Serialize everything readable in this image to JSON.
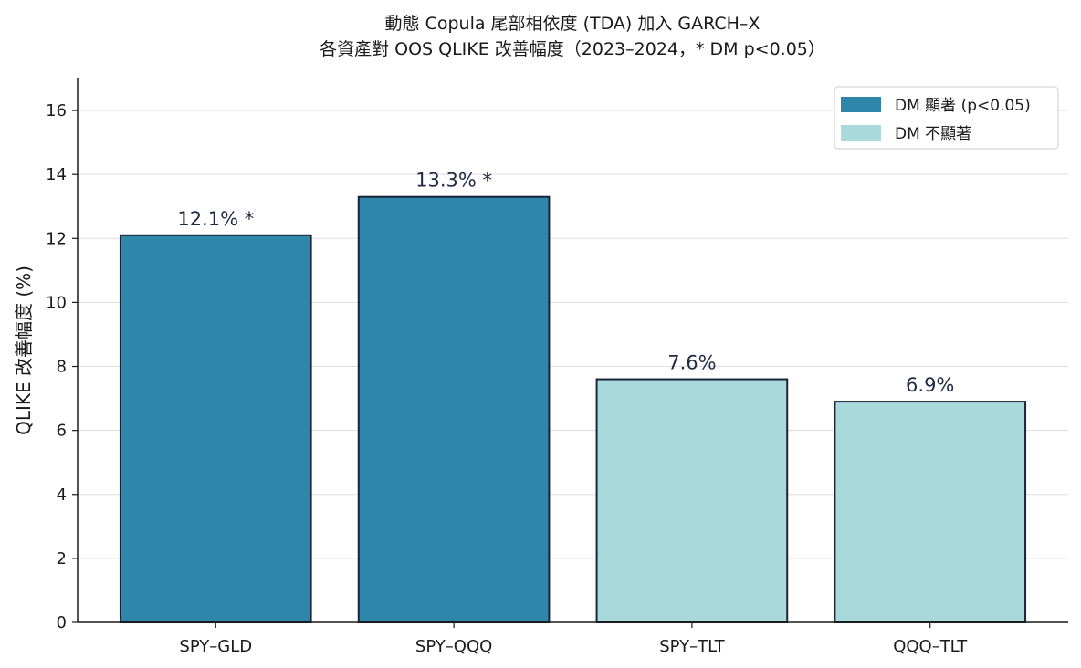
{
  "chart_data": {
    "type": "bar",
    "title_lines": [
      "動態 Copula 尾部相依度 (TDA) 加入 GARCH–X",
      "各資產對 OOS QLIKE 改善幅度（2023–2024，* DM p<0.05）"
    ],
    "xlabel": "",
    "ylabel": "QLIKE 改善幅度 (%)",
    "categories": [
      "SPY–GLD",
      "SPY–QQQ",
      "SPY–TLT",
      "QQQ–TLT"
    ],
    "values": [
      12.1,
      13.3,
      7.6,
      6.9
    ],
    "data_labels": [
      "12.1% *",
      "13.3% *",
      "7.6%",
      "6.9%"
    ],
    "significant": [
      true,
      true,
      false,
      false
    ],
    "ylim": [
      0,
      17
    ],
    "yticks": [
      0,
      2,
      4,
      6,
      8,
      10,
      12,
      14,
      16
    ],
    "grid": "horizontal",
    "legend_position": "top-right",
    "legend": [
      {
        "label": "DM 顯著 (p<0.05)",
        "color": "#2e86ab"
      },
      {
        "label": "DM 不顯著",
        "color": "#a8dadc"
      }
    ],
    "colors": {
      "significant": "#2e86ab",
      "not_significant": "#a8dadc",
      "bar_edge": "#1a2338",
      "grid": "#dddddd",
      "axis": "#1a1a1a"
    }
  }
}
